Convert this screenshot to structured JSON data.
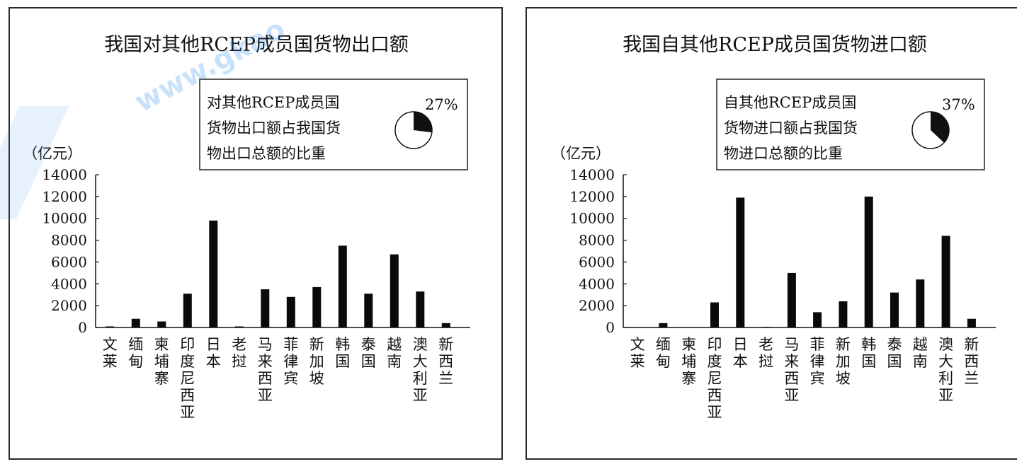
{
  "watermark": {
    "text": "www.gkao"
  },
  "chart_data": [
    {
      "type": "bar",
      "title": "我国对其他RCEP成员国货物出口额",
      "unit_label": "（亿元）",
      "ylim": [
        0,
        14000
      ],
      "yticks": [
        "14000",
        "12000",
        "10000",
        "8000",
        "6000",
        "4000",
        "2000",
        "0"
      ],
      "categories": [
        "文莱",
        "缅甸",
        "柬埔寨",
        "印度尼西亚",
        "日本",
        "老挝",
        "马来西亚",
        "菲律宾",
        "新加坡",
        "韩国",
        "泰国",
        "越南",
        "澳大利亚",
        "新西兰"
      ],
      "values": [
        100,
        800,
        550,
        3100,
        9800,
        100,
        3500,
        2800,
        3700,
        7500,
        3100,
        6700,
        3300,
        400
      ],
      "inset": {
        "lines": [
          "对其他RCEP成员国",
          "货物出口额占我国货",
          "物出口总额的比重"
        ],
        "pct_label": "27%",
        "pct": 27
      }
    },
    {
      "type": "bar",
      "title": "我国自其他RCEP成员国货物进口额",
      "unit_label": "（亿元）",
      "ylim": [
        0,
        14000
      ],
      "yticks": [
        "14000",
        "12000",
        "10000",
        "8000",
        "6000",
        "4000",
        "2000",
        "0"
      ],
      "categories": [
        "文莱",
        "缅甸",
        "柬埔寨",
        "印度尼西亚",
        "日本",
        "老挝",
        "马来西亚",
        "菲律宾",
        "新加坡",
        "韩国",
        "泰国",
        "越南",
        "澳大利亚",
        "新西兰"
      ],
      "values": [
        0,
        400,
        0,
        2300,
        11900,
        50,
        5000,
        1400,
        2400,
        12000,
        3200,
        4400,
        8400,
        800
      ],
      "inset": {
        "lines": [
          "自其他RCEP成员国",
          "货物进口额占我国货",
          "物进口总额的比重"
        ],
        "pct_label": "37%",
        "pct": 37
      }
    }
  ]
}
